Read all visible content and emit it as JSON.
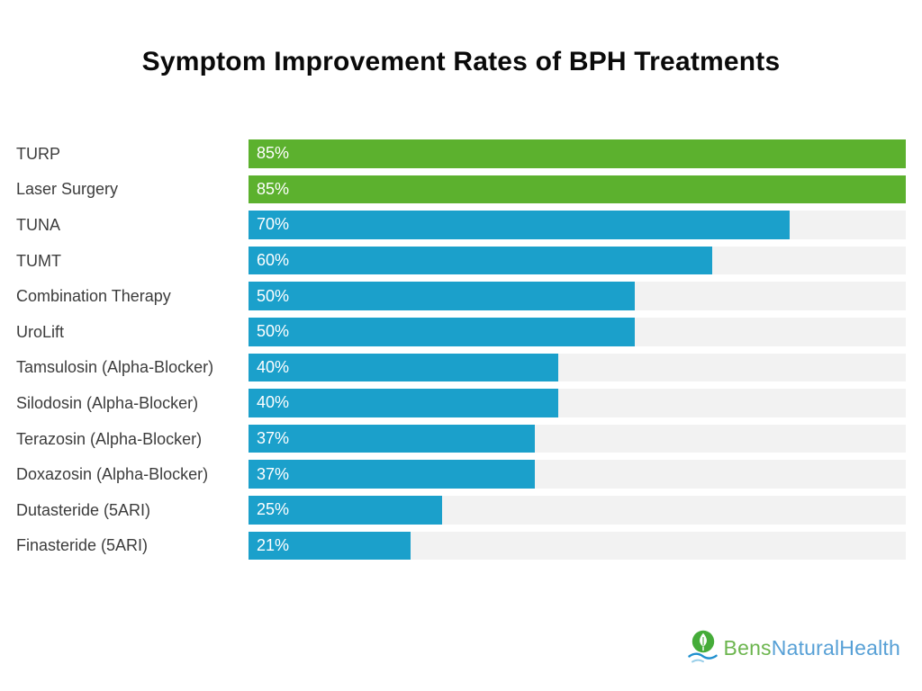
{
  "title": "Symptom Improvement Rates of BPH Treatments",
  "chart_data": {
    "type": "bar",
    "orientation": "horizontal",
    "title": "Symptom Improvement Rates of BPH Treatments",
    "categories": [
      "TURP",
      "Laser Surgery",
      "TUNA",
      "TUMT",
      "Combination Therapy",
      "UroLift",
      "Tamsulosin (Alpha-Blocker)",
      "Silodosin (Alpha-Blocker)",
      "Terazosin (Alpha-Blocker)",
      "Doxazosin (Alpha-Blocker)",
      "Dutasteride (5ARI)",
      "Finasteride (5ARI)"
    ],
    "values": [
      85,
      85,
      70,
      60,
      50,
      50,
      40,
      40,
      37,
      37,
      25,
      21
    ],
    "value_labels": [
      "85%",
      "85%",
      "70%",
      "60%",
      "50%",
      "50%",
      "40%",
      "40%",
      "37%",
      "37%",
      "25%",
      "21%"
    ],
    "bar_colors": [
      "#5cb12e",
      "#5cb12e",
      "#1ba0cb",
      "#1ba0cb",
      "#1ba0cb",
      "#1ba0cb",
      "#1ba0cb",
      "#1ba0cb",
      "#1ba0cb",
      "#1ba0cb",
      "#1ba0cb",
      "#1ba0cb"
    ],
    "track_color": "#f2f2f2",
    "xlim": [
      0,
      85
    ],
    "xlabel": "",
    "ylabel": "",
    "grid": false,
    "legend": false
  },
  "colors": {
    "green_bar": "#5cb12e",
    "blue_bar": "#1ba0cb",
    "track": "#f2f2f2",
    "title_text": "#0a0a0a",
    "label_text": "#3c3c3c",
    "value_text": "#ffffff"
  },
  "footer": {
    "logo": {
      "icon": "leaf-droplet-wave-icon",
      "text_primary": "Bens",
      "text_secondary": "NaturalHealth",
      "primary_color": "#6cb54e",
      "secondary_color": "#57a0d6",
      "icon_circle_color": "#45ac39",
      "icon_wave_color": "#2090cf",
      "icon_wave_light_color": "#9bcfe9"
    }
  }
}
